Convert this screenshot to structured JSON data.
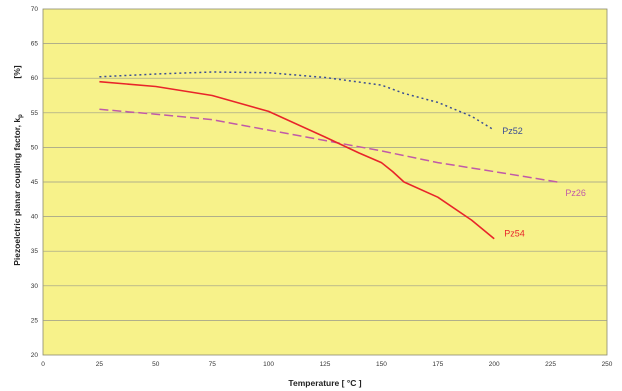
{
  "chart_data": {
    "type": "line",
    "title": "",
    "xlabel": "Temperature [ °C ]",
    "ylabel": "Piezoelctric planar coupling factor, k",
    "ylabel_subscript": "p",
    "ylabel_unit": "[%]",
    "xlim": [
      0,
      250
    ],
    "ylim": [
      20,
      70
    ],
    "x_ticks": [
      0,
      25,
      50,
      75,
      100,
      125,
      150,
      175,
      200,
      225,
      250
    ],
    "y_ticks": [
      20,
      25,
      30,
      35,
      40,
      45,
      50,
      55,
      60,
      65,
      70
    ],
    "grid": true,
    "background_color": "#f7f28a",
    "grid_color": "#9a9a8a",
    "series": [
      {
        "name": "Pz52",
        "color": "#3b4e94",
        "style": "dotted",
        "x": [
          25,
          50,
          75,
          100,
          125,
          150,
          160,
          175,
          190,
          200
        ],
        "y": [
          60.2,
          60.6,
          60.9,
          60.8,
          60.1,
          59.0,
          57.8,
          56.5,
          54.5,
          52.5
        ]
      },
      {
        "name": "Pz26",
        "color": "#c05aa8",
        "style": "dashed",
        "x": [
          25,
          50,
          75,
          100,
          125,
          150,
          175,
          200,
          228
        ],
        "y": [
          55.5,
          54.8,
          54.0,
          52.5,
          51.0,
          49.5,
          47.8,
          46.5,
          45.0
        ]
      },
      {
        "name": "Pz54",
        "color": "#e8252a",
        "style": "solid",
        "x": [
          25,
          50,
          75,
          100,
          125,
          140,
          150,
          155,
          160,
          175,
          190,
          200
        ],
        "y": [
          59.5,
          58.8,
          57.5,
          55.2,
          51.5,
          49.2,
          47.8,
          46.5,
          45.0,
          42.8,
          39.5,
          36.8
        ]
      }
    ]
  }
}
